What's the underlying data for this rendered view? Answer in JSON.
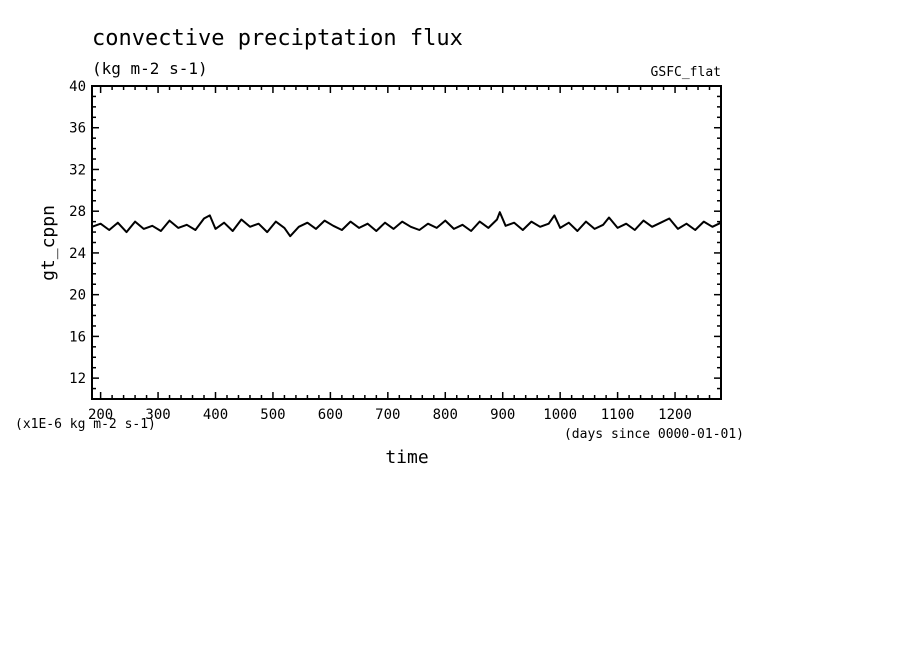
{
  "chart_data": {
    "type": "line",
    "title": "convective preciptation flux",
    "subtitle": "(kg m-2 s-1)",
    "annotation": "GSFC_flat",
    "xlabel": "time",
    "xunits": "(days since 0000-01-01)",
    "ylabel": "gt_cppn",
    "yunits": "(x1E-6 kg m-2 s-1)",
    "xlim": [
      185,
      1280
    ],
    "ylim": [
      10,
      40
    ],
    "xticks": [
      "200",
      "300",
      "400",
      "500",
      "600",
      "700",
      "800",
      "900",
      "1000",
      "1100",
      "1200"
    ],
    "yticks": [
      "12",
      "16",
      "20",
      "24",
      "28",
      "32",
      "36",
      "40"
    ],
    "grid": false,
    "legend": "none",
    "line_color": "#000000",
    "series": [
      {
        "x": [
          185,
          200,
          215,
          230,
          245,
          260,
          275,
          290,
          305,
          320,
          335,
          350,
          365,
          380,
          390,
          400,
          415,
          430,
          445,
          460,
          475,
          490,
          505,
          520,
          530,
          545,
          560,
          575,
          590,
          605,
          620,
          635,
          650,
          665,
          680,
          695,
          710,
          725,
          740,
          755,
          770,
          785,
          800,
          815,
          830,
          845,
          860,
          875,
          890,
          895,
          905,
          920,
          935,
          950,
          965,
          980,
          990,
          1000,
          1015,
          1030,
          1045,
          1060,
          1075,
          1085,
          1100,
          1115,
          1130,
          1145,
          1160,
          1175,
          1190,
          1205,
          1220,
          1235,
          1250,
          1265,
          1280
        ],
        "values": [
          26.5,
          26.8,
          26.2,
          26.9,
          26.0,
          27.0,
          26.3,
          26.6,
          26.1,
          27.1,
          26.4,
          26.7,
          26.2,
          27.3,
          27.6,
          26.3,
          26.9,
          26.1,
          27.2,
          26.5,
          26.8,
          26.0,
          27.0,
          26.4,
          25.6,
          26.5,
          26.9,
          26.3,
          27.1,
          26.6,
          26.2,
          27.0,
          26.4,
          26.8,
          26.1,
          26.9,
          26.3,
          27.0,
          26.5,
          26.2,
          26.8,
          26.4,
          27.1,
          26.3,
          26.7,
          26.1,
          27.0,
          26.4,
          27.2,
          27.9,
          26.6,
          26.9,
          26.2,
          27.0,
          26.5,
          26.8,
          27.6,
          26.4,
          26.9,
          26.1,
          27.0,
          26.3,
          26.7,
          27.4,
          26.4,
          26.8,
          26.2,
          27.1,
          26.5,
          26.9,
          27.3,
          26.3,
          26.8,
          26.2,
          27.0,
          26.5,
          26.9
        ]
      }
    ]
  }
}
